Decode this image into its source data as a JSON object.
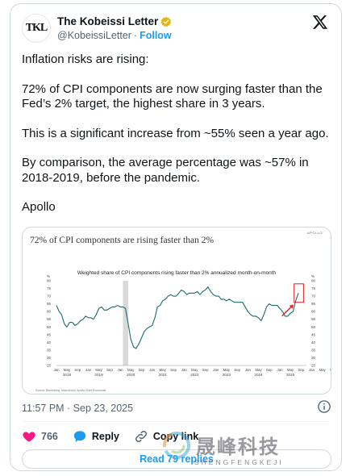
{
  "author": {
    "avatar_text": "TKL",
    "name": "The Kobeissi Letter",
    "handle": "@KobeissiLetter",
    "separator": "·",
    "follow_label": "Follow"
  },
  "tweet": {
    "paragraphs": [
      "Inflation risks are rising:",
      "72% of CPI components are now surging faster than the Fed’s 2% target, the highest share in 3 years.",
      "This is a significant increase from ~55% seen a year ago.",
      "By comparison, the average percentage was ~57% in 2018-2019, before the pandemic.",
      "Apollo"
    ],
    "timestamp": "11:57 PM · Sep 23, 2025"
  },
  "chart_image": {
    "title": "72% of CPI components are rising faster than 2%",
    "brand": "APOLLO",
    "subtitle": "Weighted share of CPI components rising faster than 2% annualized month-on-month",
    "source": "Source: Bloomberg, Macrobond, Apollo Chief Economist",
    "ylabel": "%"
  },
  "chart_data": {
    "type": "line",
    "title": "Weighted share of CPI components rising faster than 2% annualized month-on-month",
    "ylabel": "%",
    "ylim": [
      25,
      80
    ],
    "yticks": [
      25,
      30,
      35,
      40,
      45,
      50,
      55,
      60,
      65,
      70,
      75,
      80
    ],
    "x_month_ticks": [
      "Jan",
      "May",
      "Sep",
      "Jan",
      "May",
      "Sep",
      "Jan",
      "May",
      "Sep",
      "Jan",
      "May",
      "Sep",
      "Jan",
      "May",
      "Sep",
      "Jan",
      "May",
      "Sep",
      "Jan",
      "May",
      "Sep",
      "Jan",
      "May",
      "Sep",
      "Jan",
      "May",
      "Sep"
    ],
    "x_year_labels": [
      "2018",
      "2019",
      "2020",
      "2021",
      "2022",
      "2023",
      "2024",
      "2025"
    ],
    "recession_shading": {
      "start": "2020-02",
      "end": "2020-04"
    },
    "highlight_box": {
      "start": "2025-07",
      "end": "2025-09",
      "ymin": 66,
      "ymax": 78
    },
    "series": [
      {
        "name": "",
        "color": "#1a6b6b",
        "x": [
          "2018-01",
          "2018-02",
          "2018-03",
          "2018-04",
          "2018-05",
          "2018-06",
          "2018-07",
          "2018-08",
          "2018-09",
          "2018-10",
          "2018-11",
          "2018-12",
          "2019-01",
          "2019-02",
          "2019-03",
          "2019-04",
          "2019-05",
          "2019-06",
          "2019-07",
          "2019-08",
          "2019-09",
          "2019-10",
          "2019-11",
          "2019-12",
          "2020-01",
          "2020-02",
          "2020-03",
          "2020-04",
          "2020-05",
          "2020-06",
          "2020-07",
          "2020-08",
          "2020-09",
          "2020-10",
          "2020-11",
          "2020-12",
          "2021-01",
          "2021-02",
          "2021-03",
          "2021-04",
          "2021-05",
          "2021-06",
          "2021-07",
          "2021-08",
          "2021-09",
          "2021-10",
          "2021-11",
          "2021-12",
          "2022-01",
          "2022-02",
          "2022-03",
          "2022-04",
          "2022-05",
          "2022-06",
          "2022-07",
          "2022-08",
          "2022-09",
          "2022-10",
          "2022-11",
          "2022-12",
          "2023-01",
          "2023-02",
          "2023-03",
          "2023-04",
          "2023-05",
          "2023-06",
          "2023-07",
          "2023-08",
          "2023-09",
          "2023-10",
          "2023-11",
          "2023-12",
          "2024-01",
          "2024-02",
          "2024-03",
          "2024-04",
          "2024-05",
          "2024-06",
          "2024-07",
          "2024-08",
          "2024-09",
          "2024-10",
          "2024-11",
          "2024-12",
          "2025-01",
          "2025-02",
          "2025-03",
          "2025-04",
          "2025-05",
          "2025-06",
          "2025-07",
          "2025-08"
        ],
        "values": [
          64,
          60,
          58,
          52,
          50,
          53,
          53,
          51,
          52,
          54,
          55,
          57,
          56,
          56,
          55,
          58,
          62,
          63,
          61,
          61,
          62,
          63,
          63,
          64,
          63,
          63,
          62,
          52,
          42,
          37,
          36,
          39,
          43,
          47,
          49,
          50,
          51,
          56,
          63,
          64,
          67,
          68,
          70,
          71,
          70,
          70,
          72,
          74,
          73,
          71,
          72,
          72,
          72,
          73,
          71,
          73,
          74,
          76,
          73,
          71,
          70,
          70,
          68,
          68,
          67,
          68,
          67,
          66,
          66,
          66,
          66,
          63,
          60,
          58,
          57,
          57,
          56,
          54,
          58,
          63,
          65,
          64,
          64,
          64,
          62,
          60,
          57,
          57,
          59,
          60,
          67,
          72
        ]
      }
    ]
  },
  "actions": {
    "likes_count": "766",
    "reply_label": "Reply",
    "copy_label": "Copy link",
    "read_replies_label": "Read 79 replies"
  },
  "watermark": {
    "chinese": "晟峰科技",
    "english": "SHENGFENGKEJI"
  },
  "colors": {
    "link_blue": "#1d9bf0",
    "heart_red": "#f91880",
    "line_teal": "#1a6b6b",
    "shade_gray": "#d9d9d9",
    "highlight_red": "#e02020"
  }
}
